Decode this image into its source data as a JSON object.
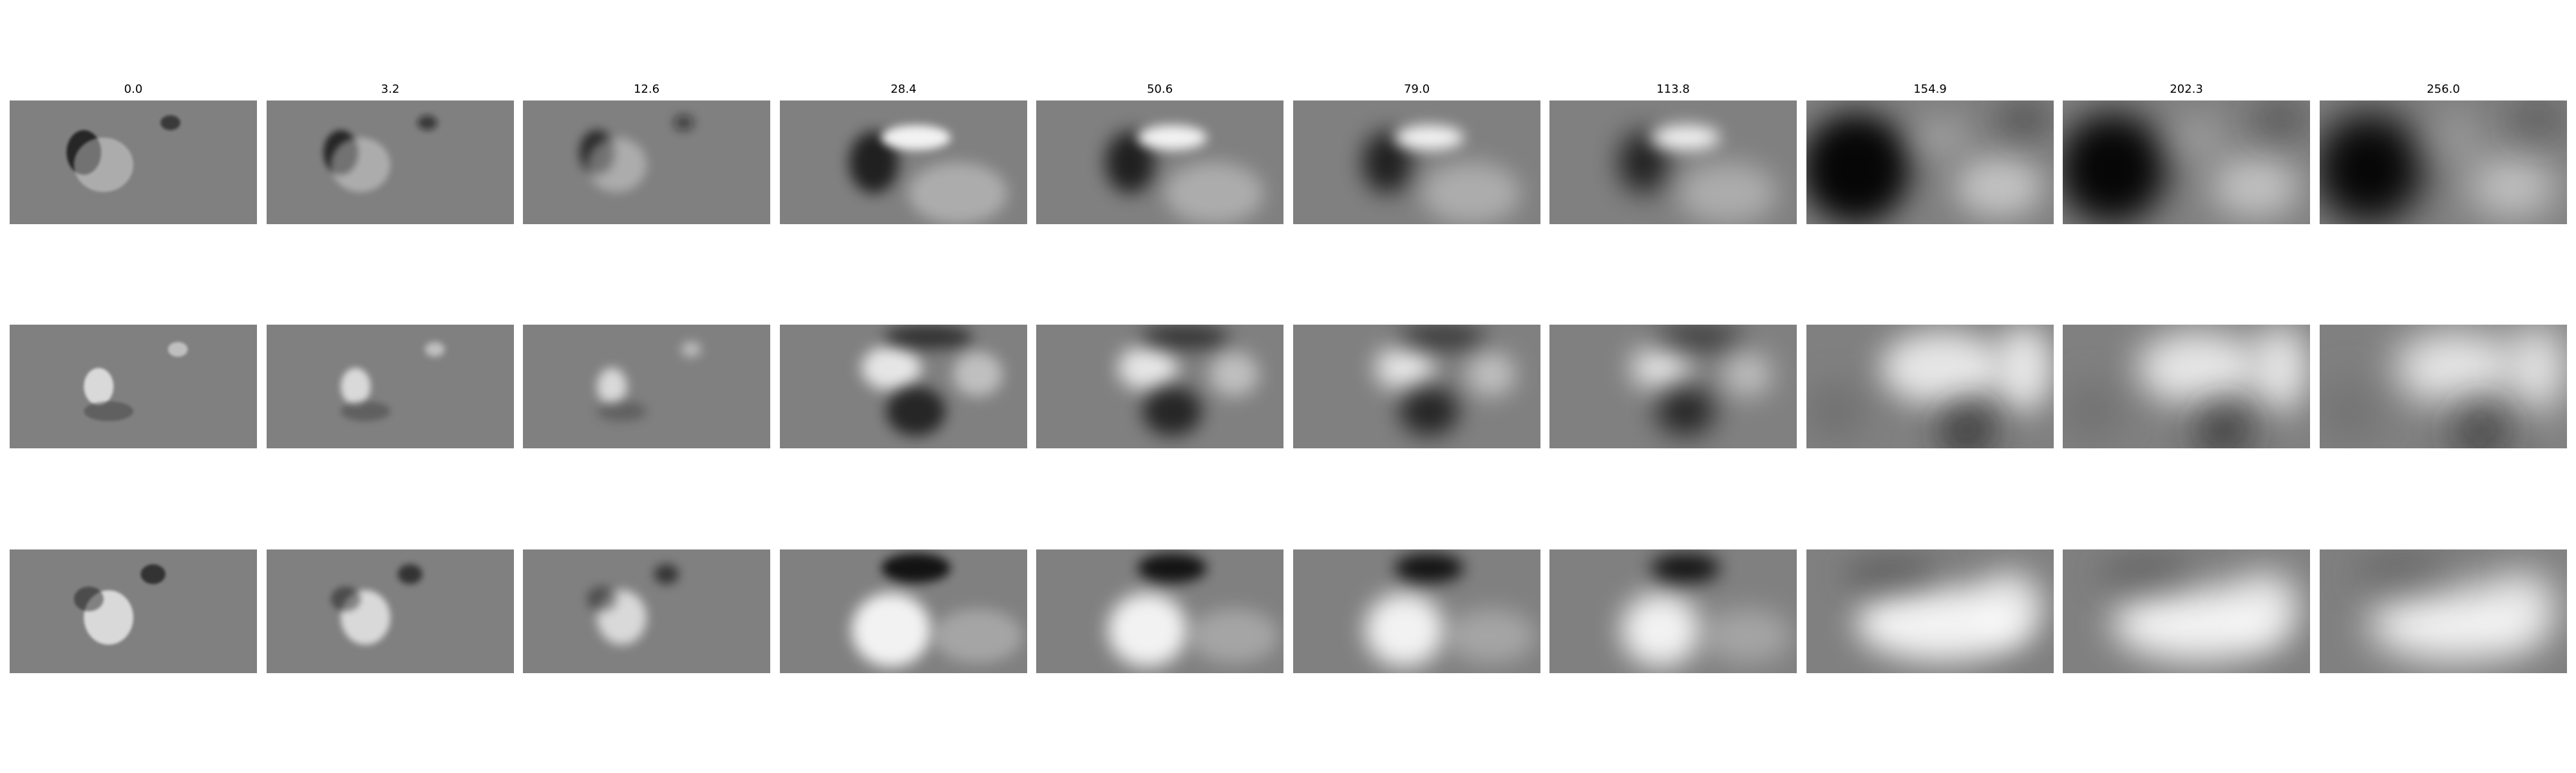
{
  "columns": [
    {
      "label": "0.0",
      "value": 0.0
    },
    {
      "label": "3.2",
      "value": 3.2
    },
    {
      "label": "12.6",
      "value": 12.6
    },
    {
      "label": "28.4",
      "value": 28.4
    },
    {
      "label": "50.6",
      "value": 50.6
    },
    {
      "label": "79.0",
      "value": 79.0
    },
    {
      "label": "113.8",
      "value": 113.8
    },
    {
      "label": "154.9",
      "value": 154.9
    },
    {
      "label": "202.3",
      "value": 202.3
    },
    {
      "label": "256.0",
      "value": 256.0
    }
  ],
  "row_count": 3,
  "colormap": "grayscale",
  "colors": {
    "background": "#ffffff",
    "panel_mid_gray": "#808080",
    "title_text": "#000000"
  }
}
